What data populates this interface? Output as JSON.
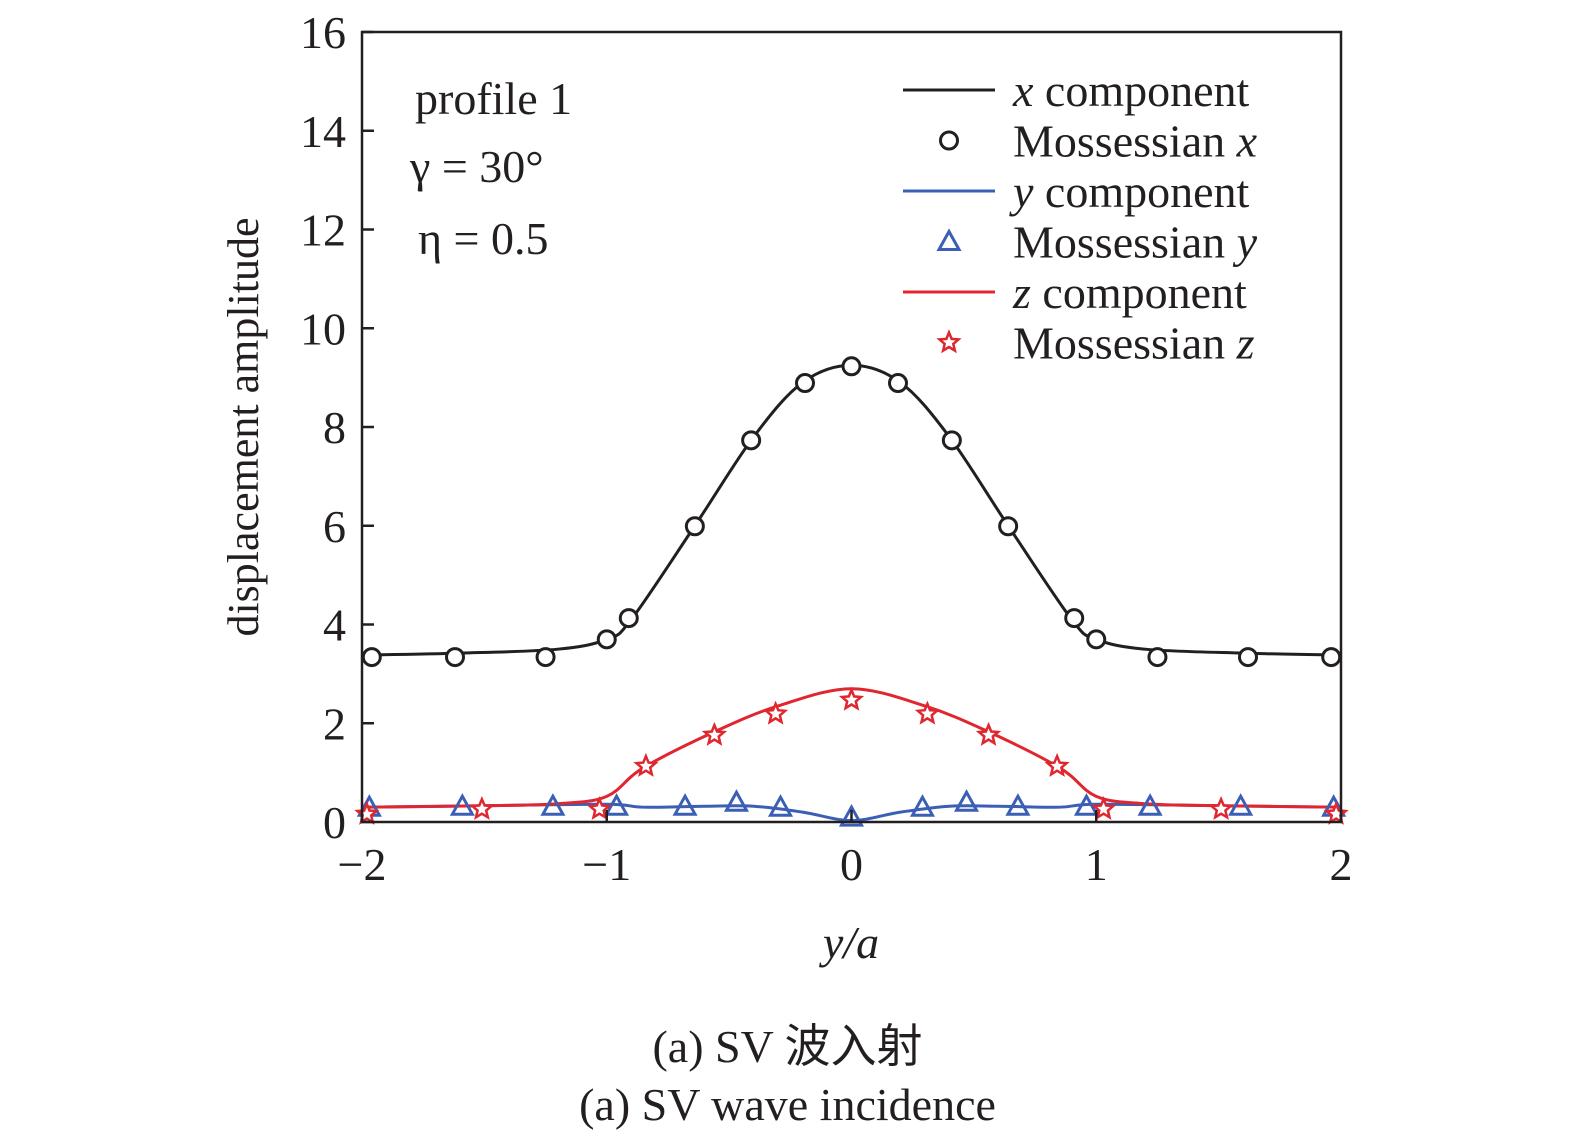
{
  "chart_data": {
    "type": "line",
    "xlabel": "y/a",
    "ylabel": "displacement amplitude",
    "xlim": [
      -2,
      2
    ],
    "ylim": [
      0,
      16
    ],
    "xticks": [
      "−2",
      "−1",
      "0",
      "1",
      "2"
    ],
    "yticks": [
      "0",
      "2",
      "4",
      "6",
      "8",
      "10",
      "12",
      "14",
      "16"
    ],
    "grid": false,
    "legend_position": "top-right",
    "annotations": [
      "profile 1",
      "γ = 30°",
      "η = 0.5"
    ],
    "series": [
      {
        "name": "x component",
        "kind": "line",
        "color": "#231f20",
        "x": [
          -2,
          -1.6,
          -1.2,
          -1.0,
          -0.9,
          -0.64,
          -0.4,
          -0.2,
          0,
          0.2,
          0.4,
          0.64,
          0.9,
          1.0,
          1.2,
          1.6,
          2
        ],
        "y": [
          3.38,
          3.42,
          3.5,
          3.7,
          4.1,
          6.0,
          7.8,
          8.9,
          9.25,
          8.9,
          7.8,
          6.0,
          4.1,
          3.7,
          3.5,
          3.42,
          3.38
        ]
      },
      {
        "name": "Mossessian x",
        "kind": "marker",
        "marker": "circle",
        "color": "#231f20",
        "x": [
          -1.96,
          -1.62,
          -1.25,
          -1.0,
          -0.91,
          -0.64,
          -0.41,
          -0.19,
          0,
          0.19,
          0.41,
          0.64,
          0.91,
          1.0,
          1.25,
          1.62,
          1.96
        ],
        "y": [
          3.34,
          3.34,
          3.34,
          3.7,
          4.13,
          5.99,
          7.73,
          8.89,
          9.23,
          8.89,
          7.73,
          5.99,
          4.13,
          3.7,
          3.34,
          3.34,
          3.34
        ]
      },
      {
        "name": "y component",
        "kind": "line",
        "color": "#3b5fb5",
        "x": [
          -2,
          -1.5,
          -1.0,
          -0.85,
          -0.6,
          -0.4,
          -0.2,
          0,
          0.2,
          0.4,
          0.6,
          0.85,
          1.0,
          1.5,
          2
        ],
        "y": [
          0.3,
          0.33,
          0.36,
          0.3,
          0.32,
          0.32,
          0.2,
          0.03,
          0.2,
          0.32,
          0.32,
          0.3,
          0.36,
          0.33,
          0.3
        ]
      },
      {
        "name": "Mossessian y",
        "kind": "marker",
        "marker": "triangle",
        "color": "#3b5fb5",
        "x": [
          -1.97,
          -1.59,
          -1.22,
          -0.96,
          -0.68,
          -0.47,
          -0.29,
          0,
          0.29,
          0.47,
          0.68,
          0.96,
          1.22,
          1.59,
          1.97
        ],
        "y": [
          0.3,
          0.32,
          0.32,
          0.32,
          0.32,
          0.4,
          0.3,
          0.1,
          0.3,
          0.4,
          0.32,
          0.32,
          0.32,
          0.32,
          0.3
        ]
      },
      {
        "name": "z component",
        "kind": "line",
        "color": "#e0262e",
        "x": [
          -2,
          -1.5,
          -1.2,
          -1.0,
          -0.85,
          -0.55,
          -0.3,
          0,
          0.3,
          0.55,
          0.85,
          1.0,
          1.2,
          1.5,
          2
        ],
        "y": [
          0.3,
          0.33,
          0.37,
          0.52,
          1.1,
          1.85,
          2.35,
          2.7,
          2.35,
          1.85,
          1.1,
          0.52,
          0.37,
          0.33,
          0.3
        ]
      },
      {
        "name": "Mossessian z",
        "kind": "marker",
        "marker": "star",
        "color": "#e0262e",
        "x": [
          -1.98,
          -1.51,
          -1.03,
          -0.84,
          -0.56,
          -0.31,
          0,
          0.31,
          0.56,
          0.84,
          1.03,
          1.51,
          1.98
        ],
        "y": [
          0.16,
          0.26,
          0.26,
          1.13,
          1.76,
          2.19,
          2.47,
          2.19,
          1.76,
          1.13,
          0.26,
          0.26,
          0.16
        ]
      }
    ]
  },
  "caption": {
    "zh": "(a) SV 波入射",
    "en": "(a) SV wave incidence"
  }
}
